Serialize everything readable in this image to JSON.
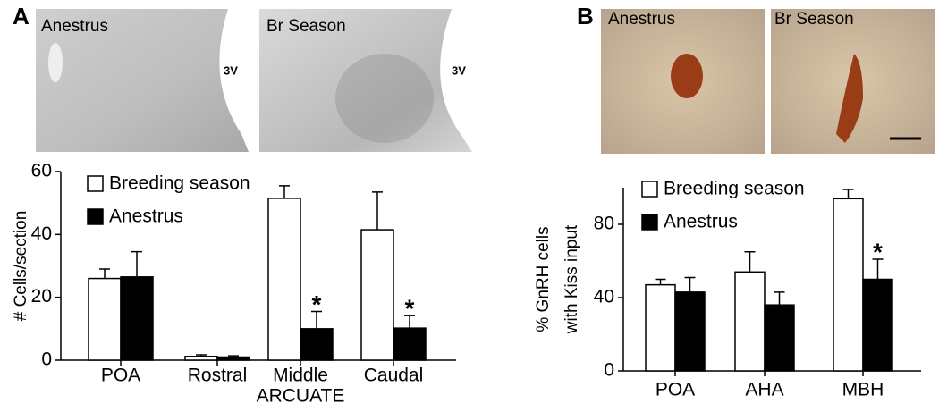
{
  "chart_data": [
    {
      "type": "bar",
      "panel": "A",
      "image_labels": [
        "Anestrus",
        "Br Season"
      ],
      "image_marks": [
        "3V",
        "3V"
      ],
      "ylabel": [
        "# Cells/section"
      ],
      "categories": [
        "POA",
        "Rostral",
        "Middle",
        "Caudal"
      ],
      "group_label": "ARCUATE",
      "series": [
        {
          "name": "Breeding season",
          "color": "#ffffff",
          "values": [
            26,
            1.2,
            51.5,
            41.5
          ],
          "errors": [
            3,
            0.5,
            4,
            12
          ]
        },
        {
          "name": "Anestrus",
          "color": "#000000",
          "values": [
            26.5,
            1,
            10,
            10.2
          ],
          "errors": [
            8,
            0.4,
            5.5,
            4
          ]
        }
      ],
      "annotations": [
        {
          "text": "*",
          "category": "Middle",
          "series": "Anestrus"
        },
        {
          "text": "*",
          "category": "Caudal",
          "series": "Anestrus"
        }
      ],
      "ylim": [
        0,
        60
      ],
      "yticks": [
        0,
        20,
        40,
        60
      ],
      "legend": "upper left"
    },
    {
      "type": "bar",
      "panel": "B",
      "image_labels": [
        "Anestrus",
        "Br Season"
      ],
      "ylabel": [
        "% GnRH cells",
        "with Kiss input"
      ],
      "categories": [
        "POA",
        "AHA",
        "MBH"
      ],
      "series": [
        {
          "name": "Breeding season",
          "color": "#ffffff",
          "values": [
            47,
            54,
            94
          ],
          "errors": [
            3,
            11,
            5
          ]
        },
        {
          "name": "Anestrus",
          "color": "#000000",
          "values": [
            43,
            36,
            50
          ],
          "errors": [
            8,
            7,
            11
          ]
        }
      ],
      "annotations": [
        {
          "text": "*",
          "category": "MBH",
          "series": "Anestrus"
        }
      ],
      "ylim": [
        0,
        100
      ],
      "yticks": [
        0,
        40,
        80
      ],
      "legend": "upper left"
    }
  ]
}
